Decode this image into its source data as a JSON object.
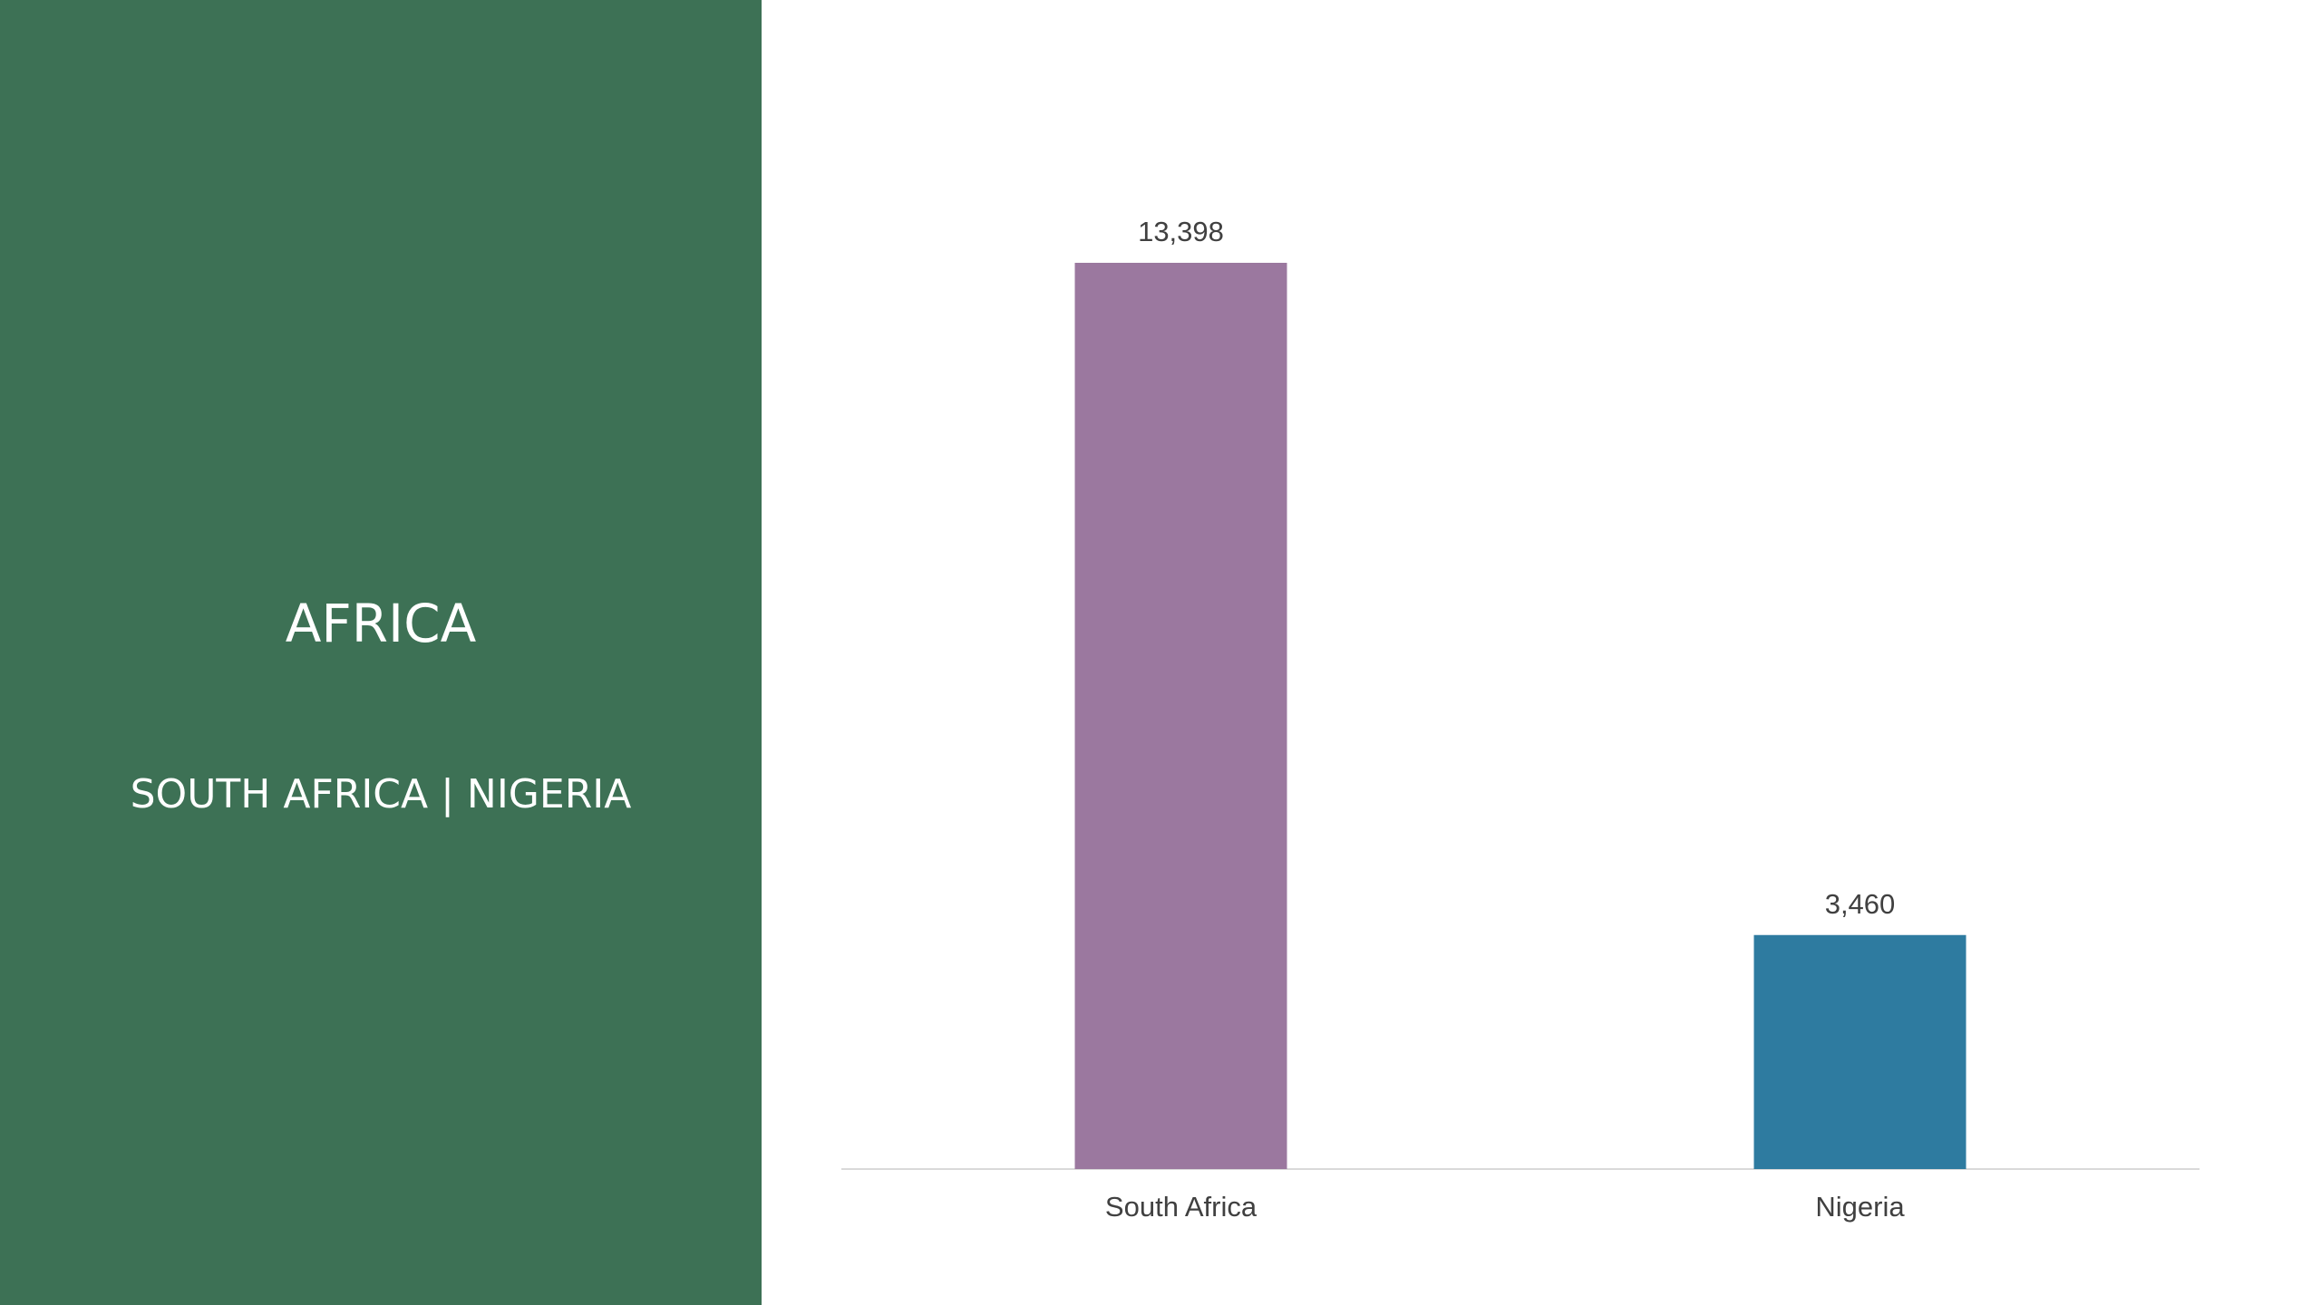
{
  "panel": {
    "title": "AFRICA",
    "subtitle": "SOUTH AFRICA | NIGERIA",
    "background": "#3d7155"
  },
  "chart_data": {
    "type": "bar",
    "categories": [
      "South Africa",
      "Nigeria"
    ],
    "values": [
      13398,
      3460
    ],
    "value_labels": [
      "13,398",
      "3,460"
    ],
    "colors": [
      "#9b789f",
      "#2e7ba0"
    ],
    "title": "",
    "xlabel": "",
    "ylabel": "",
    "ylim": [
      0,
      13398
    ],
    "grid": false,
    "legend": "none"
  }
}
